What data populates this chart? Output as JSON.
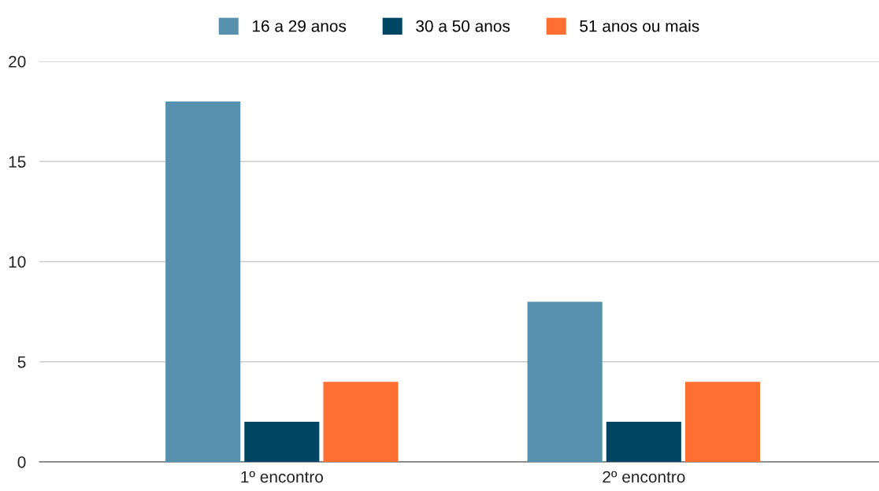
{
  "chart_data": {
    "type": "bar",
    "categories": [
      "1º encontro",
      "2º encontro"
    ],
    "series": [
      {
        "name": "16 a 29 anos",
        "color": "#5891ad",
        "values": [
          18,
          8
        ]
      },
      {
        "name": "30 a 50 anos",
        "color": "#004561",
        "values": [
          2,
          2
        ]
      },
      {
        "name": "51 anos ou mais",
        "color": "#ff6f31",
        "values": [
          4,
          4
        ]
      }
    ],
    "ylim": [
      0,
      20
    ],
    "yticks": [
      0,
      5,
      10,
      15,
      20
    ],
    "grid": "y",
    "legend": "top"
  }
}
